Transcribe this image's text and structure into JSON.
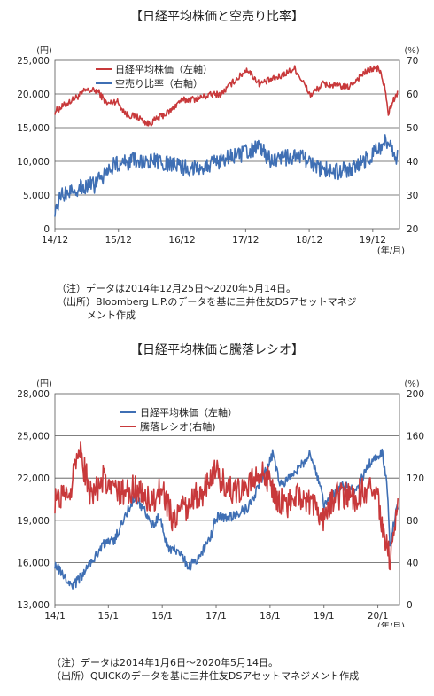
{
  "chart_data": [
    {
      "type": "line",
      "title": "【日経平均株価と空売り比率】",
      "left_unit": "(円)",
      "right_unit": "(%)",
      "x_unit": "(年/月)",
      "x_ticks": [
        "14/12",
        "15/12",
        "16/12",
        "17/12",
        "18/12",
        "19/12"
      ],
      "left_axis": {
        "ticks": [
          "0",
          "5,000",
          "10,000",
          "15,000",
          "20,000",
          "25,000"
        ],
        "ylim": [
          0,
          25000
        ]
      },
      "right_axis": {
        "ticks": [
          "20",
          "30",
          "40",
          "50",
          "60",
          "70"
        ],
        "ylim": [
          20,
          70
        ]
      },
      "grid": true,
      "legend_position": "top-left",
      "series": [
        {
          "name": "日経平均株価（左軸）",
          "axis": "left",
          "color": "#c8393b",
          "x": [
            2014.98,
            2015.2,
            2015.4,
            2015.45,
            2015.65,
            2015.8,
            2015.95,
            2016.1,
            2016.3,
            2016.45,
            2016.6,
            2016.8,
            2016.95,
            2017.2,
            2017.45,
            2017.6,
            2017.75,
            2017.9,
            2018.0,
            2018.2,
            2018.5,
            2018.75,
            2018.9,
            2019.0,
            2019.2,
            2019.4,
            2019.6,
            2019.8,
            2019.95,
            2020.08,
            2020.18,
            2020.22,
            2020.3,
            2020.37
          ],
          "values": [
            17400,
            18800,
            20000,
            20500,
            20500,
            18500,
            19000,
            17000,
            16500,
            15500,
            16400,
            17500,
            19000,
            19300,
            19900,
            20000,
            21500,
            22700,
            23700,
            21500,
            22500,
            23800,
            21500,
            19800,
            21500,
            21200,
            21000,
            22800,
            23700,
            23800,
            20500,
            17000,
            19000,
            20000
          ]
        },
        {
          "name": "空売り比率（右軸）",
          "axis": "right",
          "color": "#3f6fb4",
          "x": [
            2014.98,
            2015.1,
            2015.3,
            2015.6,
            2015.9,
            2016.2,
            2016.5,
            2016.8,
            2017.1,
            2017.4,
            2017.7,
            2017.9,
            2018.2,
            2018.4,
            2018.6,
            2018.9,
            2019.1,
            2019.4,
            2019.7,
            2019.9,
            2020.1,
            2020.2,
            2020.3,
            2020.37
          ],
          "values": [
            26,
            30,
            32,
            33,
            39,
            40,
            40,
            39,
            38,
            39,
            41,
            42,
            44,
            40,
            41,
            41,
            38,
            37,
            38,
            41,
            44,
            46,
            43,
            41
          ]
        }
      ]
    },
    {
      "type": "line",
      "title": "【日経平均株価と騰落レシオ】",
      "left_unit": "(円)",
      "right_unit": "(%)",
      "x_unit": "(年/月)",
      "x_ticks": [
        "14/1",
        "15/1",
        "16/1",
        "17/1",
        "18/1",
        "19/1",
        "20/1"
      ],
      "left_axis": {
        "ticks": [
          "13,000",
          "16,000",
          "19,000",
          "22,000",
          "25,000",
          "28,000"
        ],
        "ylim": [
          13000,
          28000
        ]
      },
      "right_axis": {
        "ticks": [
          "0",
          "40",
          "80",
          "120",
          "160",
          "200"
        ],
        "ylim": [
          0,
          200
        ]
      },
      "grid": true,
      "legend_position": "top-center",
      "series": [
        {
          "name": "日経平均株価（左軸）",
          "axis": "left",
          "color": "#3f6fb4",
          "x": [
            2014.01,
            2014.2,
            2014.35,
            2014.6,
            2014.9,
            2015.1,
            2015.4,
            2015.5,
            2015.7,
            2015.8,
            2015.95,
            2016.1,
            2016.3,
            2016.5,
            2016.7,
            2016.9,
            2017.0,
            2017.3,
            2017.6,
            2017.8,
            2017.95,
            2018.05,
            2018.2,
            2018.5,
            2018.75,
            2018.95,
            2019.0,
            2019.3,
            2019.6,
            2019.9,
            2020.08,
            2020.18,
            2020.22,
            2020.3,
            2020.37
          ],
          "values": [
            15900,
            14900,
            14300,
            15500,
            17300,
            17500,
            20000,
            20700,
            19500,
            18500,
            19300,
            17000,
            16800,
            15700,
            16500,
            17800,
            19200,
            19300,
            19900,
            21500,
            22800,
            23700,
            21500,
            22500,
            23800,
            21000,
            20000,
            21500,
            21200,
            23400,
            23800,
            21000,
            17200,
            19000,
            20000
          ]
        },
        {
          "name": "騰落レシオ(右軸)",
          "axis": "right",
          "color": "#c8393b",
          "x": [
            2014.01,
            2014.3,
            2014.45,
            2014.7,
            2014.9,
            2015.2,
            2015.5,
            2015.8,
            2016.0,
            2016.2,
            2016.5,
            2016.8,
            2017.0,
            2017.3,
            2017.6,
            2017.9,
            2018.1,
            2018.3,
            2018.6,
            2018.9,
            2019.0,
            2019.2,
            2019.5,
            2019.8,
            2020.0,
            2020.15,
            2020.22,
            2020.3,
            2020.37
          ],
          "values": [
            100,
            105,
            150,
            100,
            120,
            105,
            110,
            95,
            110,
            80,
            95,
            110,
            125,
            105,
            115,
            125,
            100,
            95,
            105,
            90,
            80,
            105,
            100,
            110,
            100,
            60,
            45,
            70,
            110
          ]
        }
      ]
    }
  ],
  "notes1": [
    "（注）データは2014年12月25日～2020年5月14日。",
    "（出所）Bloomberg L.P.のデータを基に三井住友DSアセットマネジ",
    "メント作成"
  ],
  "notes2": [
    "（注）データは2014年1月6日～2020年5月14日。",
    "（出所）QUICKのデータを基に三井住友DSアセットマネジメント作成"
  ]
}
